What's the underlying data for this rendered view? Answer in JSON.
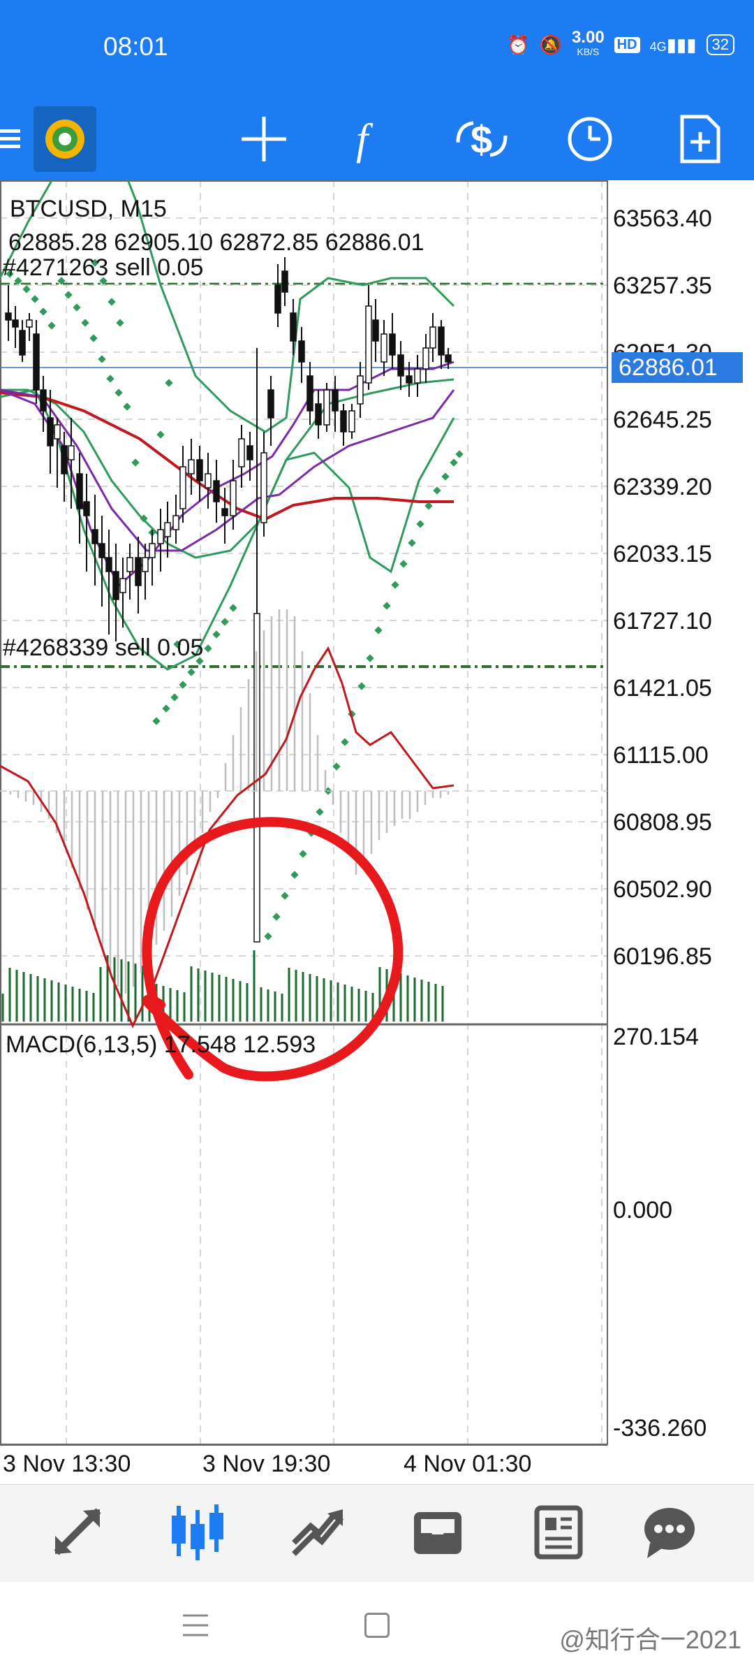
{
  "status": {
    "time": "08:01",
    "net_speed": "3.00",
    "net_unit": "KB/S",
    "hd": "HD",
    "signal": "4G",
    "battery": "32"
  },
  "toolbar": {
    "icons": [
      "menu-icon",
      "metatrader-logo",
      "crosshair-icon",
      "indicators-icon",
      "trade-icon",
      "period-icon",
      "new-order-icon"
    ]
  },
  "chart": {
    "symbol": "BTCUSD, M15",
    "ohlc": "62885.28 62905.10 62872.85 62886.01",
    "order1": "#4271263 sell  0.05",
    "order2": "#4268339 sell  0.05",
    "price_labels": [
      "63563.40",
      "63257.35",
      "62951.30",
      "62645.25",
      "62339.20",
      "62033.15",
      "61727.10",
      "61421.05",
      "61115.00",
      "60808.95",
      "60502.90",
      "60196.85"
    ],
    "current_price": "62886.01",
    "macd_label": "MACD(6,13,5) 17.548 12.593",
    "macd_labels": [
      "270.154",
      "0.000",
      "-336.260"
    ],
    "time_labels": [
      "3 Nov 13:30",
      "3 Nov 19:30",
      "4 Nov 01:30"
    ],
    "colors": {
      "grid": "#c8c8c8",
      "bull": "#ffffff",
      "bear": "#111111",
      "sma_red": "#c0181c",
      "ma_purple": "#7a2aa8",
      "bands_green": "#2e9a5b",
      "sar": "#2e9a5b",
      "volume": "#1a6b2d",
      "macd_line": "#c0181c",
      "price_tag": "#2a7ae0",
      "annotation": "#e8191c"
    }
  },
  "bottom_nav": {
    "items": [
      "quotes",
      "chart",
      "trade",
      "history",
      "news",
      "messages"
    ]
  },
  "watermark": "@知行合一2021"
}
